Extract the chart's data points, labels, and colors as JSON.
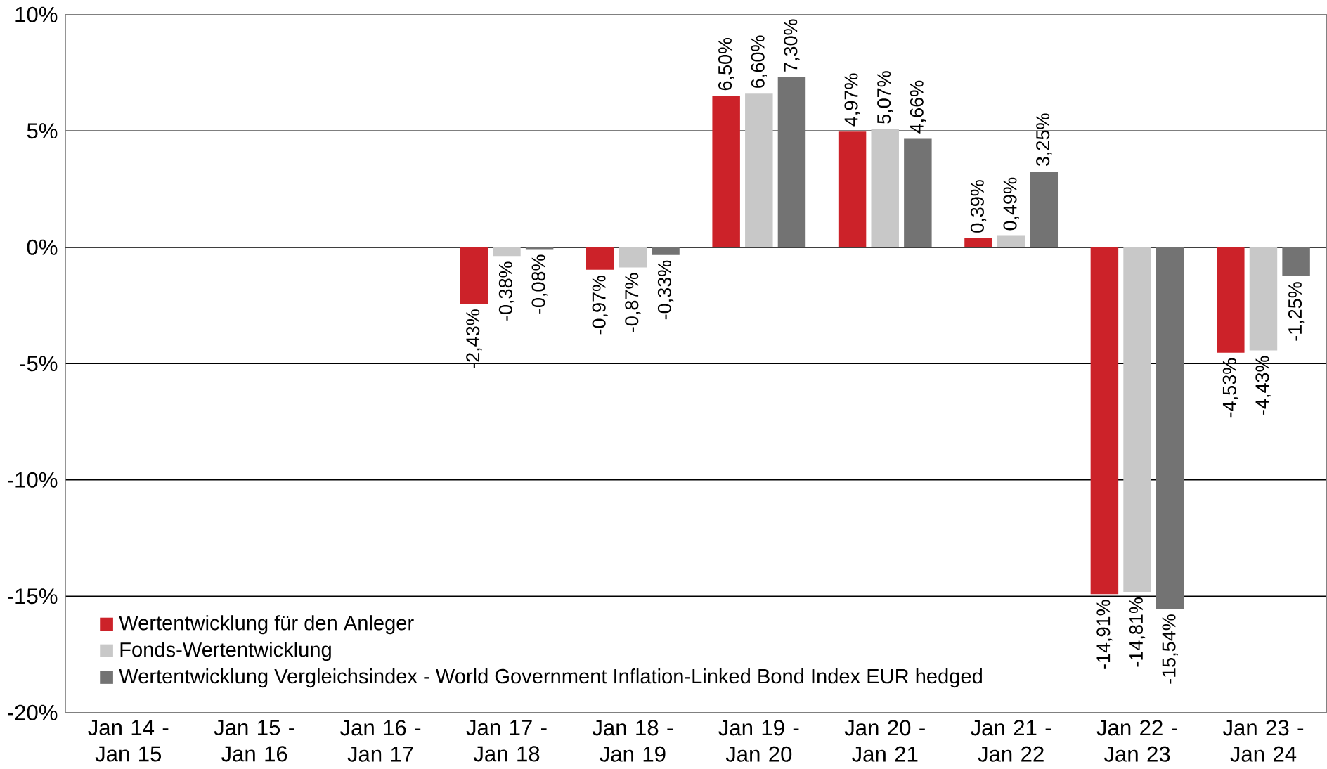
{
  "chart_data": {
    "type": "bar",
    "categories": [
      "Jan 14 - Jan 15",
      "Jan 15 - Jan 16",
      "Jan 16 - Jan 17",
      "Jan 17 - Jan 18",
      "Jan 18 - Jan 19",
      "Jan 19 - Jan 20",
      "Jan 20 - Jan 21",
      "Jan 21 - Jan 22",
      "Jan 22 - Jan 23",
      "Jan 23 - Jan 24"
    ],
    "series": [
      {
        "name": "Wertentwicklung für den Anleger",
        "color": "#cc2229",
        "values": [
          null,
          null,
          null,
          -2.43,
          -0.97,
          6.5,
          4.97,
          0.39,
          -14.91,
          -4.53
        ],
        "value_labels": [
          null,
          null,
          null,
          "-2,43%",
          "-0,97%",
          "6,50%",
          "4,97%",
          "0,39%",
          "-14,91%",
          "-4,53%"
        ]
      },
      {
        "name": "Fonds-Wertentwicklung",
        "color": "#c8c8c8",
        "values": [
          null,
          null,
          null,
          -0.38,
          -0.87,
          6.6,
          5.07,
          0.49,
          -14.81,
          -4.43
        ],
        "value_labels": [
          null,
          null,
          null,
          "-0,38%",
          "-0,87%",
          "6,60%",
          "5,07%",
          "0,49%",
          "-14,81%",
          "-4,43%"
        ]
      },
      {
        "name": "Wertentwicklung Vergleichsindex - World Government Inflation-Linked Bond Index EUR hedged",
        "color": "#737373",
        "values": [
          null,
          null,
          null,
          -0.08,
          -0.33,
          7.3,
          4.66,
          3.25,
          -15.54,
          -1.25
        ],
        "value_labels": [
          null,
          null,
          null,
          "-0,08%",
          "-0,33%",
          "7,30%",
          "4,66%",
          "3,25%",
          "-15,54%",
          "-1,25%"
        ]
      }
    ],
    "ylim": [
      -20,
      10
    ],
    "yticks": [
      {
        "value": -20,
        "label": "-20%"
      },
      {
        "value": -15,
        "label": "-15%"
      },
      {
        "value": -10,
        "label": "-10%"
      },
      {
        "value": -5,
        "label": "-5%"
      },
      {
        "value": 0,
        "label": "0%"
      },
      {
        "value": 5,
        "label": "5%"
      },
      {
        "value": 10,
        "label": "10%"
      }
    ],
    "grid": "y",
    "legend": "bottom left"
  }
}
